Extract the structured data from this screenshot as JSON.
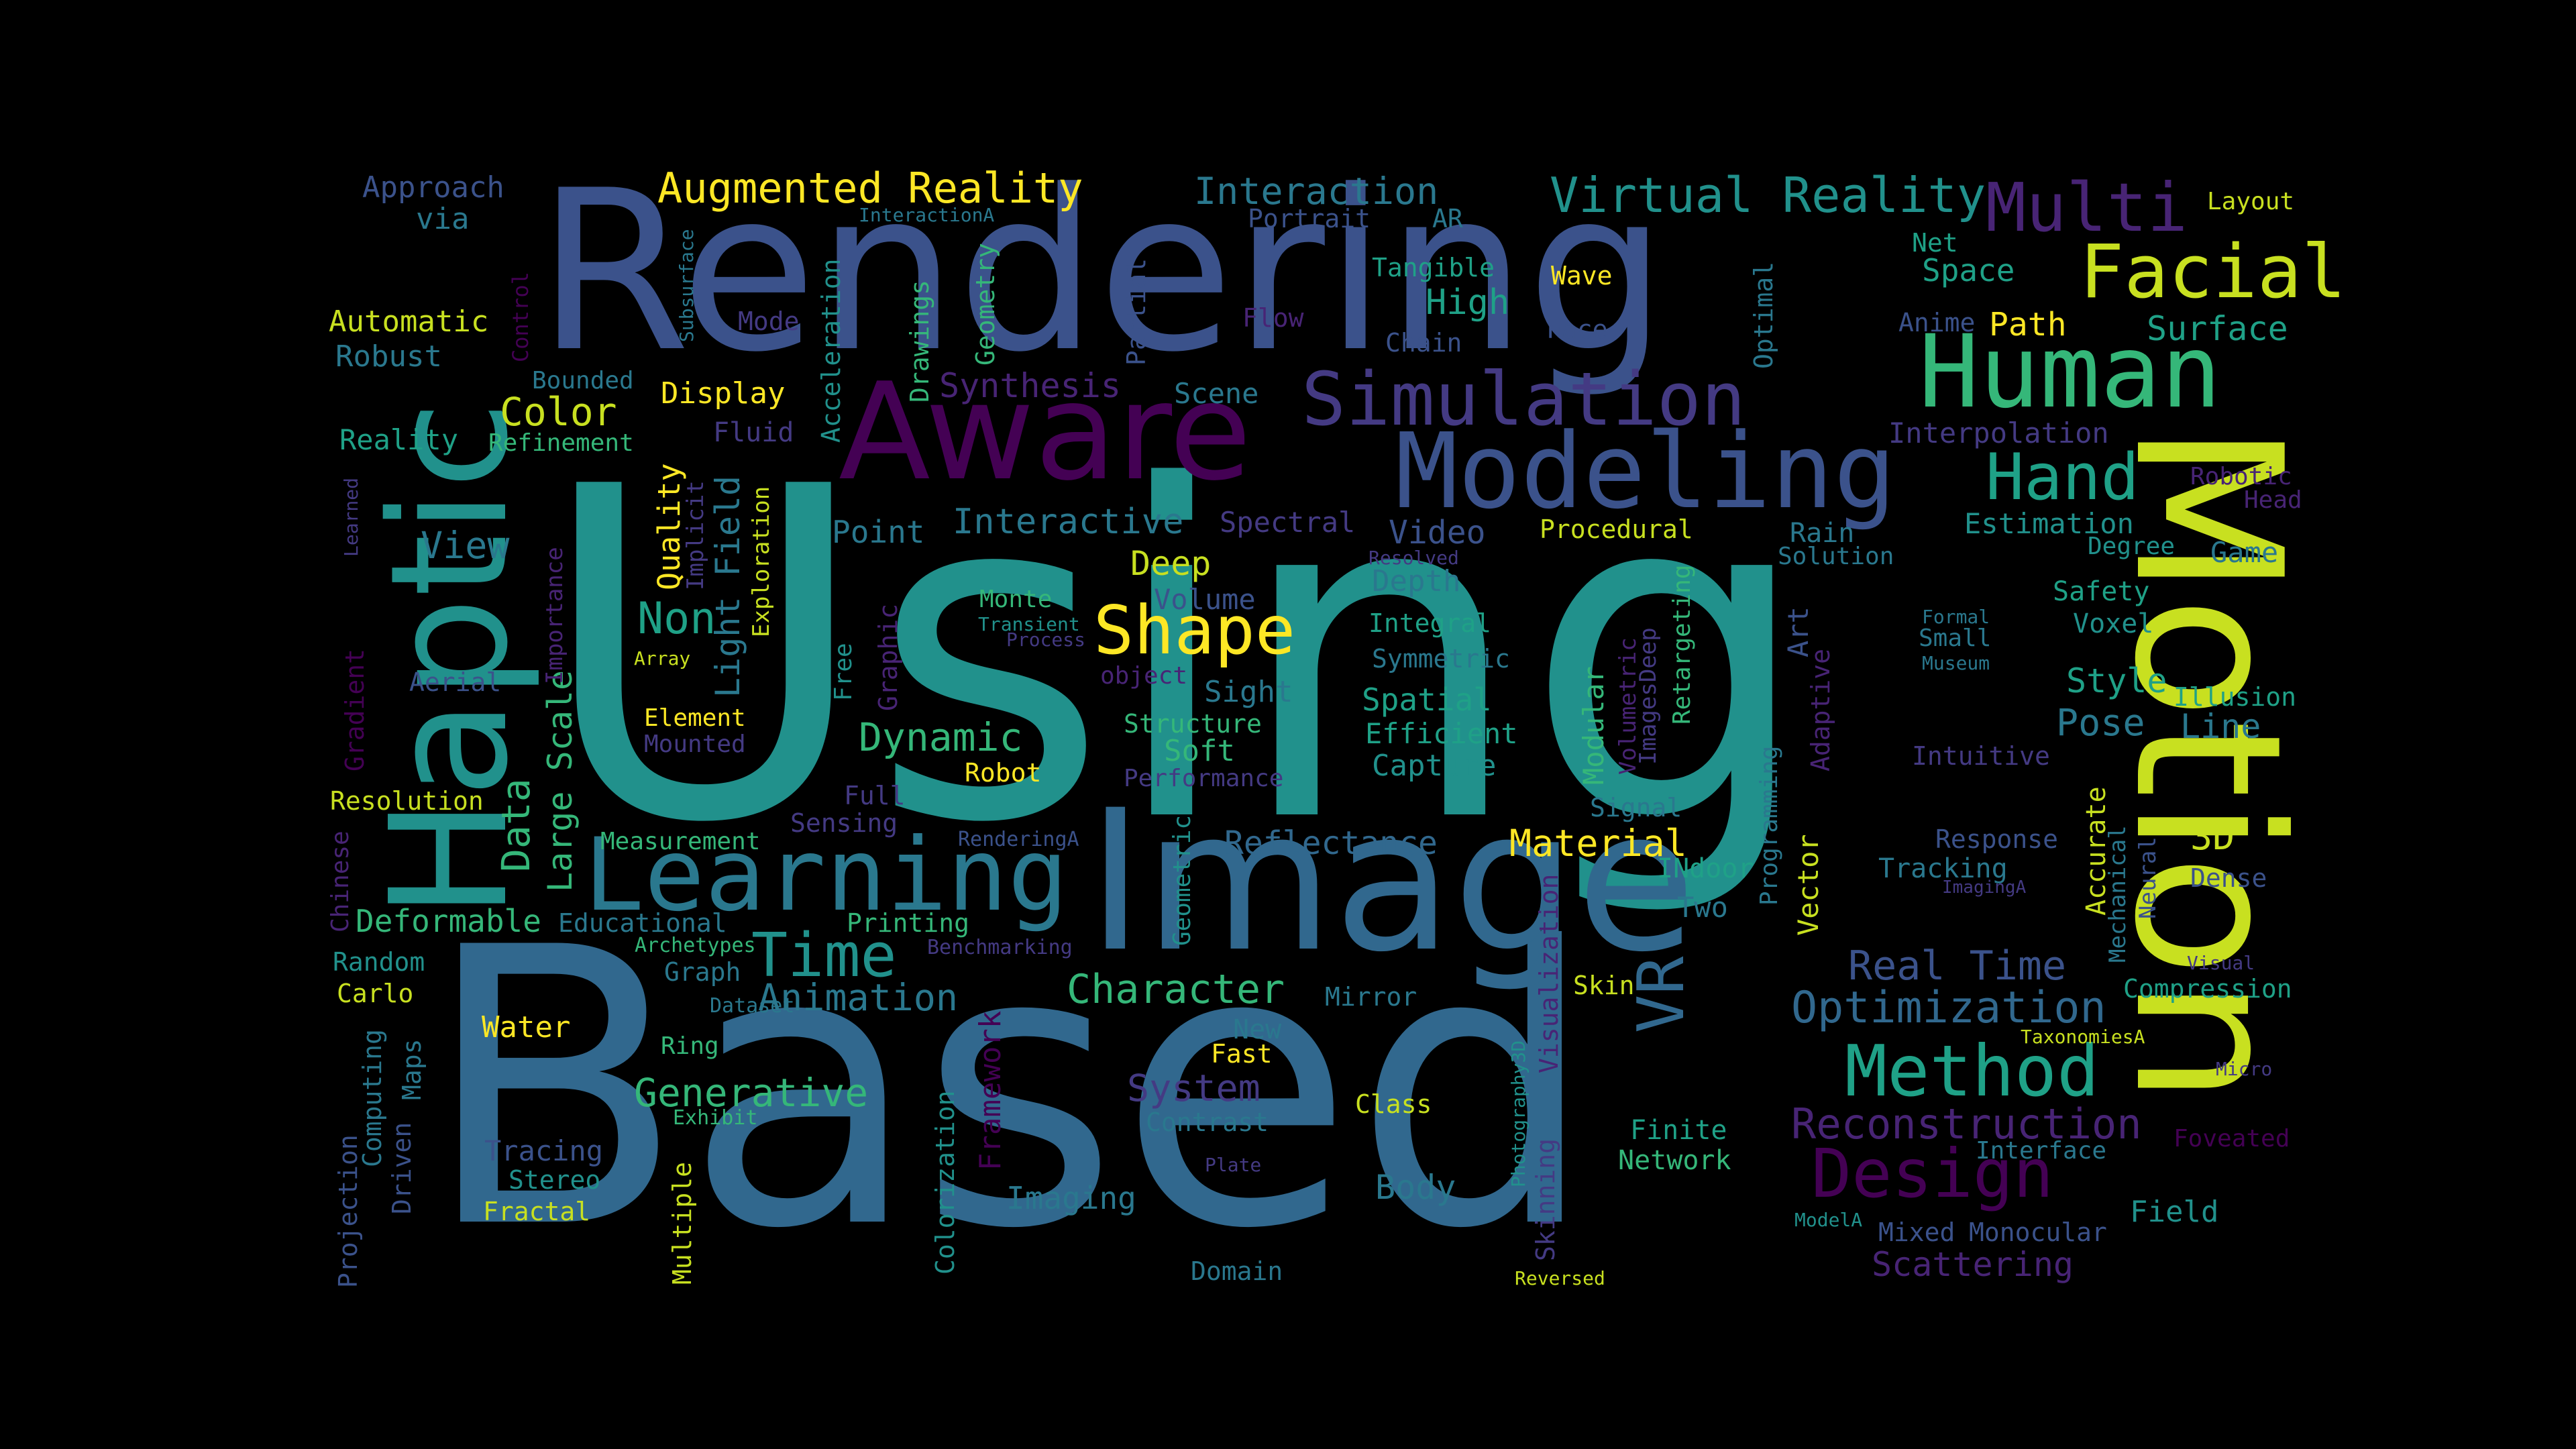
{
  "palette": {
    "background": "#000000",
    "teal": "#21918c",
    "blue": "#31688e",
    "indigo": "#3b528b",
    "violet": "#440154",
    "purple": "#482475",
    "deep_purple": "#443a83",
    "green": "#35b779",
    "light_green": "#90d743",
    "lime": "#c8e020",
    "yellow": "#fde725",
    "aqua": "#1fa187",
    "sea": "#2a788e"
  },
  "words": {
    "using": "Using",
    "based": "Based",
    "rendering": "Rendering",
    "motion": "Motion",
    "image": "Image",
    "haptic": "Haptic",
    "aware": "Aware",
    "modeling": "Modeling",
    "human": "Human",
    "learning": "Learning",
    "simulation": "Simulation",
    "facial": "Facial",
    "multi": "Multi",
    "design": "Design",
    "method": "Method",
    "shape": "Shape",
    "hand": "Hand",
    "time": "Time",
    "vr": "VR",
    "virtual_reality": "Virtual Reality",
    "augmented_reality": "Augmented Reality",
    "reconstruction": "Reconstruction",
    "optimization": "Optimization",
    "real_time": "Real Time",
    "character": "Character",
    "dynamic": "Dynamic",
    "animation": "Animation",
    "generative": "Generative",
    "system": "System",
    "interaction": "Interaction",
    "interactive": "Interactive",
    "reflectance": "Reflectance",
    "material": "Material",
    "color": "Color",
    "non": "Non",
    "view": "View",
    "data": "Data",
    "large_scale": "Large Scale",
    "light_field": "Light Field",
    "quality": "Quality",
    "deformable": "Deformable",
    "pose": "Pose",
    "style": "Style",
    "line": "Line",
    "three_d": "3D",
    "surface": "Surface",
    "path": "Path",
    "space": "Space",
    "net": "Net",
    "layout": "Layout",
    "robotic": "Robotic",
    "head": "Head",
    "estimation": "Estimation",
    "degree": "Degree",
    "game": "Game",
    "safety": "Safety",
    "voxel": "Voxel",
    "illusion": "Illusion",
    "intuitive": "Intuitive",
    "response": "Response",
    "tracking": "Tracking",
    "dense": "Dense",
    "accurate": "Accurate",
    "mechanical": "Mechanical",
    "neural": "Neural",
    "vector": "Vector",
    "programming": "Programming",
    "adaptive": "Adaptive",
    "art": "Art",
    "compression": "Compression",
    "taxonomies_a": "TaxonomiesA",
    "micro": "Micro",
    "foveated": "Foveated",
    "interface": "Interface",
    "field": "Field",
    "mixed": "Mixed",
    "monocular": "Monocular",
    "scattering": "Scattering",
    "model_a": "ModelA",
    "visual": "Visual",
    "formal": "Formal",
    "small": "Small",
    "museum": "Museum",
    "rain": "Rain",
    "solution": "Solution",
    "procedural": "Procedural",
    "video": "Video",
    "depth": "Depth",
    "resolved": "Resolved",
    "integral": "Integral",
    "symmetric": "Symmetric",
    "spatial": "Spatial",
    "efficient": "Efficient",
    "capture": "Capture",
    "modular": "Modular",
    "volumetric": "Volumetric",
    "images_deep": "ImagesDeep",
    "retargeting": "Retargeting",
    "signal": "Signal",
    "indoor": "INdoor",
    "two": "Two",
    "skin": "Skin",
    "mirror": "Mirror",
    "class": "Class",
    "finite": "Finite",
    "network": "Network",
    "body": "Body",
    "skinning": "Skinning",
    "photography3d": "Photography3D",
    "visualization": "Visualization",
    "reversed": "Reversed",
    "domain": "Domain",
    "plate": "Plate",
    "contrast": "Contrast",
    "imaging": "Imaging",
    "fast": "Fast",
    "new": "New",
    "framework": "Framework",
    "colorization": "Colorization",
    "geometric": "Geometric",
    "benchmarking": "Benchmarking",
    "printing": "Printing",
    "full": "Full",
    "sensing": "Sensing",
    "rendering_a": "RenderingA",
    "structure": "Structure",
    "soft": "Soft",
    "robot": "Robot",
    "performance": "Performance",
    "sight": "Sight",
    "object": "object",
    "volume": "Volume",
    "deep": "Deep",
    "monte": "Monte",
    "transient": "Transient",
    "process": "Process",
    "graphic": "Graphic",
    "free": "Free",
    "point": "Point",
    "spectral": "Spectral",
    "scene": "Scene",
    "synthesis": "Synthesis",
    "fluid": "Fluid",
    "drawings": "Drawings",
    "geometry": "Geometry",
    "partial": "Partial",
    "acceleration": "Acceleration",
    "mode": "Mode",
    "flow": "Flow",
    "chain": "Chain",
    "tangible": "Tangible",
    "high": "High",
    "wave": "Wave",
    "face": "Face",
    "optimal": "Optimal",
    "anime": "Anime",
    "interpolation": "Interpolation",
    "portrait": "Portrait",
    "ar": "AR",
    "interaction_a": "InteractionA",
    "approach": "Approach",
    "via": "via",
    "automatic": "Automatic",
    "robust": "Robust",
    "bounded": "Bounded",
    "control": "Control",
    "subsurface": "Subsurface",
    "display": "Display",
    "reality": "Reality",
    "refinement": "Refinement",
    "learned": "Learned",
    "implicit": "Implicit",
    "exploration": "Exploration",
    "importance": "Importance",
    "gradient": "Gradient",
    "aerial": "Aerial",
    "array": "Array",
    "element": "Element",
    "mounted": "Mounted",
    "resolution": "Resolution",
    "measurement": "Measurement",
    "chinese": "Chinese",
    "educational": "Educational",
    "archetypes": "Archetypes",
    "random": "Random",
    "graph": "Graph",
    "carlo": "Carlo",
    "dataset": "Dataset",
    "water": "Water",
    "ring": "Ring",
    "exhibit": "Exhibit",
    "maps": "Maps",
    "computing": "Computing",
    "driven": "Driven",
    "tracing": "Tracing",
    "stereo": "Stereo",
    "fractal": "Fractal",
    "projection": "Projection",
    "multiple": "Multiple",
    "imaging_a": "ImagingA"
  }
}
